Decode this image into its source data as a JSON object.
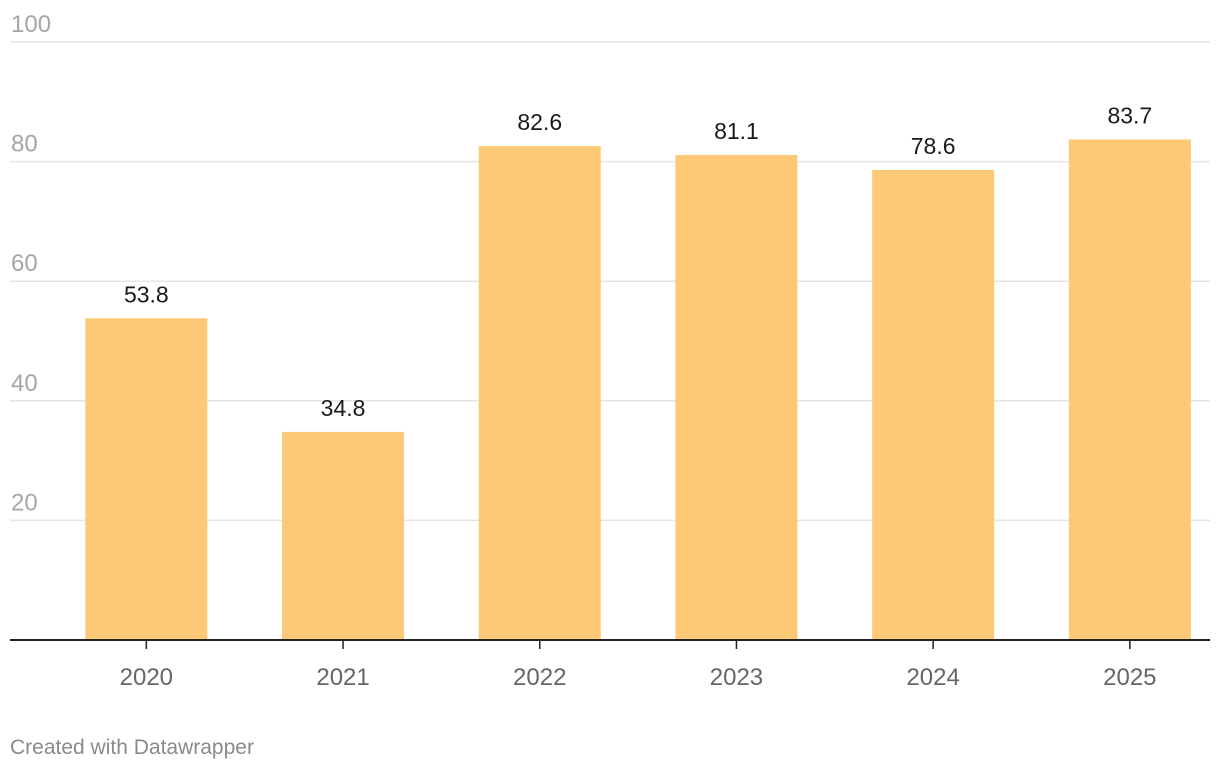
{
  "chart_data": {
    "type": "bar",
    "categories": [
      "2020",
      "2021",
      "2022",
      "2023",
      "2024",
      "2025"
    ],
    "values": [
      53.8,
      34.8,
      82.6,
      81.1,
      78.6,
      83.7
    ],
    "value_labels": [
      "53.8",
      "34.8",
      "82.6",
      "81.1",
      "78.6",
      "83.7"
    ],
    "yticks": [
      20,
      40,
      60,
      80,
      100
    ],
    "ytick_labels": [
      "20",
      "40",
      "60",
      "80",
      "100"
    ],
    "ylim": [
      0,
      100
    ],
    "grid": true,
    "bar_color": "#fdc976",
    "title": "",
    "xlabel": "",
    "ylabel": ""
  },
  "footer": {
    "credit": "Created with Datawrapper"
  }
}
